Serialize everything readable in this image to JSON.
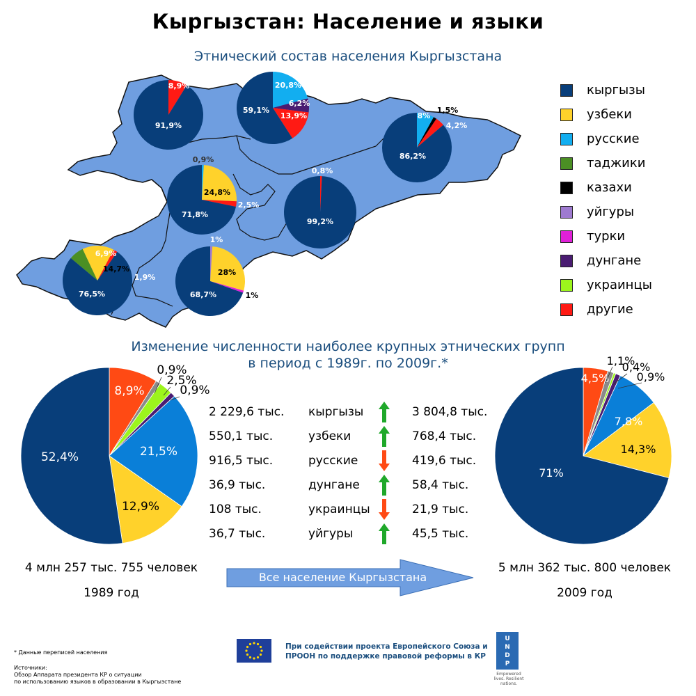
{
  "title": "Кыргызстан: Население и языки",
  "map_title": "Этнический состав населения Кыргызстана",
  "change_title_line1": "Изменение численности наиболее крупных этнических групп",
  "change_title_line2": "в период с 1989г. по 2009г.*",
  "colors": {
    "map_fill": "#6f9ee0",
    "kyrgyz": "#083e7a",
    "uzbek": "#ffd22b",
    "russian": "#12aef0",
    "tajik": "#4b8f24",
    "kazakh": "#000000",
    "uyghur": "#9e7ad0",
    "turk": "#e020d8",
    "dungan": "#4a1c72",
    "ukrainian": "#9cf51c",
    "other": "#ff1a14",
    "other_orange": "#ff4a14",
    "russian_big": "#0a7fd8",
    "up_arrow": "#1fa82a",
    "down_arrow": "#ff4a14",
    "title_blue": "#1b4e7e"
  },
  "legend": [
    {
      "label": "кыргызы",
      "color": "#083e7a"
    },
    {
      "label": "узбеки",
      "color": "#ffd22b"
    },
    {
      "label": "русские",
      "color": "#12aef0"
    },
    {
      "label": "таджики",
      "color": "#4b8f24"
    },
    {
      "label": "казахи",
      "color": "#000000"
    },
    {
      "label": "уйгуры",
      "color": "#9e7ad0"
    },
    {
      "label": "турки",
      "color": "#e020d8"
    },
    {
      "label": "дунгане",
      "color": "#4a1c72"
    },
    {
      "label": "украинцы",
      "color": "#9cf51c"
    },
    {
      "label": "другие",
      "color": "#ff1a14"
    }
  ],
  "table": {
    "rows": [
      {
        "old": "2 229,6 тыс.",
        "name": "кыргызы",
        "trend": "up",
        "new": "3 804,8 тыс."
      },
      {
        "old": "550,1 тыс.",
        "name": "узбеки",
        "trend": "up",
        "new": "768,4 тыс."
      },
      {
        "old": "916,5 тыс.",
        "name": "русские",
        "trend": "down",
        "new": "419,6 тыс."
      },
      {
        "old": "36,9 тыс.",
        "name": "дунгане",
        "trend": "up",
        "new": "58,4 тыс."
      },
      {
        "old": "108 тыс.",
        "name": "украинцы",
        "trend": "down",
        "new": "21,9 тыс."
      },
      {
        "old": "36,7 тыс.",
        "name": "уйгуры",
        "trend": "up",
        "new": "45,5 тыс."
      }
    ]
  },
  "totals": {
    "left_total": "4 млн 257 тыс. 755 человек",
    "left_year": "1989 год",
    "arrow_label": "Все население Кыргызстана",
    "right_total": "5 млн 362 тыс. 800 человек",
    "right_year": "2009 год"
  },
  "footer": {
    "note": "* Данные переписей населения",
    "sources_title": "Источники:",
    "sources_line1": "Обзор Аппарата президента КР о ситуации",
    "sources_line2": "по использованию языков в образовании в Кыргызстане",
    "support_line1": "При содействии проекта Европейского Союза и",
    "support_line2": "ПРООН по поддержке правовой реформы в КР",
    "undp_text": "U N D P",
    "undp_tagline": "Empowered lives. Resilient nations."
  },
  "chart_data": [
    {
      "type": "pie",
      "name": "",
      "slices": [
        {
          "group": "кыргызы",
          "value": 91.9,
          "label": "91,9%"
        },
        {
          "group": "другие",
          "value": 8.9,
          "label": "8,9%"
        }
      ]
    },
    {
      "type": "pie",
      "name": "",
      "slices": [
        {
          "group": "кыргызы",
          "value": 59.1,
          "label": "59,1%"
        },
        {
          "group": "русские",
          "value": 20.8,
          "label": "20,8%"
        },
        {
          "group": "дунгане",
          "value": 6.2,
          "label": "6,2%"
        },
        {
          "group": "другие",
          "value": 13.9,
          "label": "13,9%"
        }
      ]
    },
    {
      "type": "pie",
      "name": "",
      "slices": [
        {
          "group": "кыргызы",
          "value": 86.2,
          "label": "86,2%"
        },
        {
          "group": "русские",
          "value": 8,
          "label": "8%"
        },
        {
          "group": "казахи",
          "value": 1.5,
          "label": "1,5%"
        },
        {
          "group": "другие",
          "value": 4.2,
          "label": "4,2%"
        }
      ]
    },
    {
      "type": "pie",
      "name": "",
      "slices": [
        {
          "group": "кыргызы",
          "value": 71.8,
          "label": "71,8%"
        },
        {
          "group": "русские",
          "value": 0.9,
          "label": "0,9%"
        },
        {
          "group": "узбеки",
          "value": 24.8,
          "label": "24,8%"
        },
        {
          "group": "другие",
          "value": 2.5,
          "label": "2,5%"
        }
      ]
    },
    {
      "type": "pie",
      "name": "",
      "slices": [
        {
          "group": "кыргызы",
          "value": 99.2,
          "label": "99,2%"
        },
        {
          "group": "другие",
          "value": 0.8,
          "label": "0,8%"
        }
      ]
    },
    {
      "type": "pie",
      "name": "",
      "slices": [
        {
          "group": "кыргызы",
          "value": 76.5,
          "label": "76,5%"
        },
        {
          "group": "таджики",
          "value": 6.9,
          "label": "6,9%"
        },
        {
          "group": "узбеки",
          "value": 14.7,
          "label": "14,7%"
        },
        {
          "group": "другие",
          "value": 1.9,
          "label": "1,9%"
        }
      ]
    },
    {
      "type": "pie",
      "name": "",
      "slices": [
        {
          "group": "кыргызы",
          "value": 68.7,
          "label": "68,7%"
        },
        {
          "group": "уйгуры",
          "value": 1,
          "label": "1%"
        },
        {
          "group": "узбеки",
          "value": 28,
          "label": "28%"
        },
        {
          "group": "турки",
          "value": 1,
          "label": "1%"
        }
      ]
    },
    {
      "type": "pie",
      "name": "1989 год",
      "slices": [
        {
          "group": "кыргызы",
          "value": 52.4,
          "label": "52,4%"
        },
        {
          "group": "другие",
          "value": 8.9,
          "label": "8,9%"
        },
        {
          "group": "уйгуры",
          "value": 0.9,
          "label": "0,9%"
        },
        {
          "group": "украинцы",
          "value": 2.5,
          "label": "2,5%"
        },
        {
          "group": "дунгане",
          "value": 0.9,
          "label": "0,9%"
        },
        {
          "group": "русские",
          "value": 21.5,
          "label": "21,5%"
        },
        {
          "group": "узбеки",
          "value": 12.9,
          "label": "12,9%"
        }
      ]
    },
    {
      "type": "pie",
      "name": "2009 год",
      "slices": [
        {
          "group": "кыргызы",
          "value": 71,
          "label": "71%"
        },
        {
          "group": "другие",
          "value": 4.5,
          "label": "4,5%"
        },
        {
          "group": "уйгуры",
          "value": 1.1,
          "label": "1,1%"
        },
        {
          "group": "украинцы",
          "value": 0.4,
          "label": "0,4%"
        },
        {
          "group": "дунгане",
          "value": 0.9,
          "label": "0,9%"
        },
        {
          "group": "русские",
          "value": 7.8,
          "label": "7,8%"
        },
        {
          "group": "узбеки",
          "value": 14.3,
          "label": "14,3%"
        }
      ]
    }
  ]
}
